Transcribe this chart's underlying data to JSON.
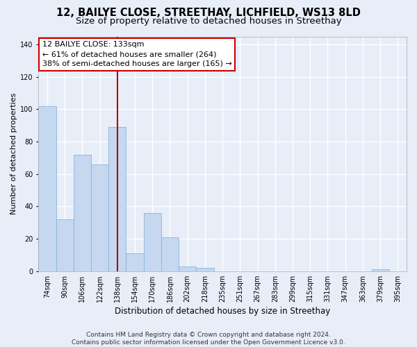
{
  "title": "12, BAILYE CLOSE, STREETHAY, LICHFIELD, WS13 8LD",
  "subtitle": "Size of property relative to detached houses in Streethay",
  "xlabel": "Distribution of detached houses by size in Streethay",
  "ylabel": "Number of detached properties",
  "categories": [
    "74sqm",
    "90sqm",
    "106sqm",
    "122sqm",
    "138sqm",
    "154sqm",
    "170sqm",
    "186sqm",
    "202sqm",
    "218sqm",
    "235sqm",
    "251sqm",
    "267sqm",
    "283sqm",
    "299sqm",
    "315sqm",
    "331sqm",
    "347sqm",
    "363sqm",
    "379sqm",
    "395sqm"
  ],
  "values": [
    102,
    32,
    72,
    66,
    89,
    11,
    36,
    21,
    3,
    2,
    0,
    0,
    0,
    0,
    0,
    0,
    0,
    0,
    0,
    1,
    0
  ],
  "bar_color": "#c5d8f0",
  "bar_edge_color": "#8ab4d8",
  "vline_x_index": 4,
  "vline_color": "#aa0000",
  "ylim": [
    0,
    145
  ],
  "yticks": [
    0,
    20,
    40,
    60,
    80,
    100,
    120,
    140
  ],
  "annotation_title": "12 BAILYE CLOSE: 133sqm",
  "annotation_line1": "← 61% of detached houses are smaller (264)",
  "annotation_line2": "38% of semi-detached houses are larger (165) →",
  "annotation_box_facecolor": "#ffffff",
  "annotation_box_edgecolor": "#cc0000",
  "footer_line1": "Contains HM Land Registry data © Crown copyright and database right 2024.",
  "footer_line2": "Contains public sector information licensed under the Open Government Licence v3.0.",
  "background_color": "#e8eef8",
  "axes_background": "#e8eef8",
  "grid_color": "#ffffff",
  "title_fontsize": 10.5,
  "subtitle_fontsize": 9.5,
  "xlabel_fontsize": 8.5,
  "ylabel_fontsize": 8,
  "tick_fontsize": 7,
  "footer_fontsize": 6.5,
  "annotation_fontsize": 8
}
